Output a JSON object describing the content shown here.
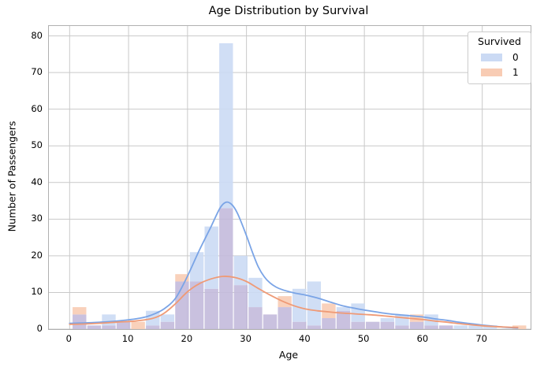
{
  "title": "Age Distribution by Survival",
  "axes": {
    "xlabel": "Age",
    "ylabel": "Number of Passengers",
    "xticks": [
      0,
      10,
      20,
      30,
      40,
      50,
      60,
      70
    ],
    "yticks": [
      0,
      10,
      20,
      30,
      40,
      50,
      60,
      70,
      80
    ],
    "xlim": [
      -3.52,
      78.2
    ],
    "ylim": [
      0,
      82.7
    ],
    "grid": true
  },
  "legend": {
    "title": "Survived",
    "position": "upper right",
    "items": [
      {
        "label": "0",
        "color": "#cbdaf4"
      },
      {
        "label": "1",
        "color": "#f8ccb4"
      }
    ]
  },
  "colors": {
    "bar_survived0": "#cbdaf4",
    "bar_survived1": "#f8ccb4",
    "bar_overlap": "#c3badb",
    "kde_survived0": "#7aa4e6",
    "kde_survived1": "#ef9a76",
    "gridline": "#c9c9c9",
    "spine": "#b0b0b0",
    "text": "#000000"
  },
  "chart_data": {
    "type": "bar",
    "subtype": "overlaid histogram with kde",
    "title": "Age Distribution by Survival",
    "xlabel": "Age",
    "ylabel": "Number of Passengers",
    "xlim": [
      -3.52,
      78.2
    ],
    "ylim": [
      0,
      82.7
    ],
    "bin_width": 2.4875,
    "bin_starts": [
      0.42,
      2.91,
      5.4,
      7.88,
      10.37,
      12.86,
      15.35,
      17.83,
      20.32,
      22.81,
      25.3,
      27.78,
      30.27,
      32.76,
      35.25,
      37.73,
      40.22,
      42.71,
      45.2,
      47.68,
      50.17,
      52.66,
      55.15,
      57.63,
      60.12,
      62.61,
      65.1,
      67.58,
      70.07,
      72.56,
      75.05,
      77.54
    ],
    "series": [
      {
        "name": "0",
        "values": [
          4,
          1,
          4,
          2,
          0,
          5,
          4,
          13,
          21,
          28,
          78,
          20,
          14,
          4,
          6,
          11,
          13,
          3,
          6,
          7,
          2,
          3,
          4,
          2,
          4,
          1,
          1,
          1,
          1,
          0,
          0,
          0
        ]
      },
      {
        "name": "1",
        "values": [
          6,
          1,
          1,
          2,
          2,
          1,
          2,
          15,
          13,
          11,
          33,
          12,
          6,
          4,
          9,
          2,
          1,
          7,
          5,
          2,
          2,
          2,
          1,
          4,
          1,
          1,
          0,
          0,
          0,
          0,
          1,
          0
        ]
      }
    ],
    "kde": [
      {
        "name": "0",
        "points": [
          [
            0,
            1.6
          ],
          [
            4,
            1.8
          ],
          [
            8,
            2.2
          ],
          [
            12,
            3.0
          ],
          [
            14,
            3.9
          ],
          [
            16,
            5.5
          ],
          [
            18,
            8.5
          ],
          [
            20,
            14.5
          ],
          [
            22,
            21.5
          ],
          [
            24,
            28
          ],
          [
            25.5,
            33
          ],
          [
            26.5,
            34.6
          ],
          [
            27.5,
            34
          ],
          [
            28.5,
            31.5
          ],
          [
            30,
            25.5
          ],
          [
            31,
            21
          ],
          [
            32,
            17
          ],
          [
            33,
            14.3
          ],
          [
            34,
            12.6
          ],
          [
            35,
            11.5
          ],
          [
            36,
            10.8
          ],
          [
            38,
            9.9
          ],
          [
            40,
            9.3
          ],
          [
            42,
            8.5
          ],
          [
            44,
            7.5
          ],
          [
            46,
            6.5
          ],
          [
            48,
            5.8
          ],
          [
            50,
            5.2
          ],
          [
            52,
            4.7
          ],
          [
            54,
            4.2
          ],
          [
            56,
            3.9
          ],
          [
            58,
            3.6
          ],
          [
            60,
            3.3
          ],
          [
            62,
            2.8
          ],
          [
            64,
            2.4
          ],
          [
            66,
            1.9
          ],
          [
            68,
            1.5
          ],
          [
            70,
            1.1
          ],
          [
            72,
            0.8
          ],
          [
            74,
            0.5
          ],
          [
            76,
            0.3
          ]
        ]
      },
      {
        "name": "1",
        "points": [
          [
            0,
            1.3
          ],
          [
            4,
            1.5
          ],
          [
            8,
            1.9
          ],
          [
            11,
            2.2
          ],
          [
            14,
            2.9
          ],
          [
            16,
            4.3
          ],
          [
            18,
            7.0
          ],
          [
            20,
            10.2
          ],
          [
            22,
            12.4
          ],
          [
            24,
            13.7
          ],
          [
            26,
            14.4
          ],
          [
            28,
            14.1
          ],
          [
            30,
            13.0
          ],
          [
            32,
            11.1
          ],
          [
            34,
            9.3
          ],
          [
            36,
            7.7
          ],
          [
            38,
            6.4
          ],
          [
            40,
            5.5
          ],
          [
            42,
            5.0
          ],
          [
            44,
            4.7
          ],
          [
            46,
            4.4
          ],
          [
            48,
            4.2
          ],
          [
            50,
            4.0
          ],
          [
            52,
            3.8
          ],
          [
            54,
            3.5
          ],
          [
            56,
            3.2
          ],
          [
            58,
            2.9
          ],
          [
            60,
            2.6
          ],
          [
            62,
            2.2
          ],
          [
            64,
            1.9
          ],
          [
            66,
            1.5
          ],
          [
            68,
            1.2
          ],
          [
            70,
            0.9
          ],
          [
            72,
            0.7
          ],
          [
            74,
            0.55
          ],
          [
            76,
            0.45
          ]
        ]
      }
    ]
  }
}
